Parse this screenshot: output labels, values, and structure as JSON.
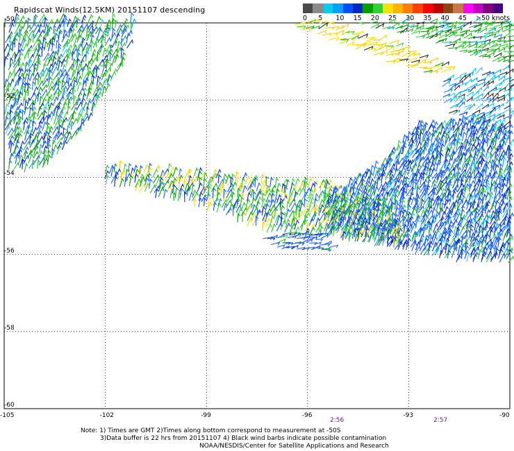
{
  "title": "Rapidscat Winds(12.5KM) 20151107 descending",
  "legend": {
    "colors": [
      "#4a4a4a",
      "#8a8a8a",
      "#00ccee",
      "#00a0ff",
      "#0050ff",
      "#0028c8",
      "#00a000",
      "#32d232",
      "#ffe000",
      "#ffb400",
      "#ff8000",
      "#ff4000",
      "#ff0000",
      "#c00000",
      "#8b4513",
      "#c87846",
      "#ff00ff",
      "#c000c0",
      "#800080",
      "#4b0082"
    ],
    "labels": [
      "0",
      "5",
      "10",
      "15",
      "20",
      "25",
      "30",
      "35",
      "40",
      "45",
      ">50 knots"
    ]
  },
  "map": {
    "lat_labels": [
      "-50",
      "-52",
      "-54",
      "-56",
      "-58",
      "-60"
    ],
    "lon_labels": [
      "-105",
      "-102",
      "-99",
      "-96",
      "-93",
      "-90"
    ],
    "times": [
      "2:56",
      "2:57"
    ]
  },
  "notes": {
    "line1": "Note: 1) Times are GMT 2)Times along bottom correspond to measurement at -50S",
    "line2": "3)Data buffer is 22 hrs from 20151107 4) Black wind barbs indicate possible contamination",
    "line3": "NOAA/NESDIS/Center for Satellite Applications and Research"
  }
}
